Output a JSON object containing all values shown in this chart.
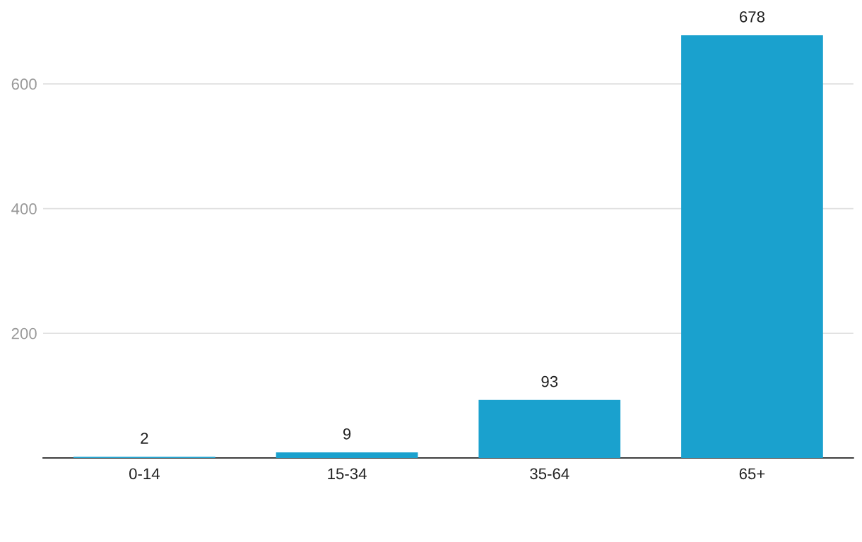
{
  "chart_data": {
    "type": "bar",
    "categories": [
      "0-14",
      "15-34",
      "35-64",
      "65+"
    ],
    "values": [
      2,
      9,
      93,
      678
    ],
    "color": "#1aa1ce",
    "ylim": [
      0,
      678
    ],
    "yticks": [
      200,
      400,
      600
    ],
    "grid": "y",
    "data_labels": true
  }
}
